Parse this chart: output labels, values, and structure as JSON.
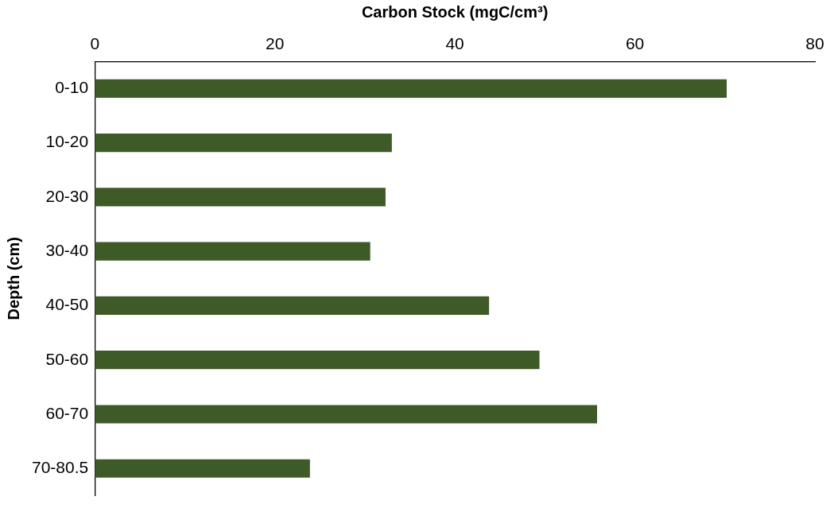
{
  "chart_data": {
    "type": "bar",
    "orientation": "horizontal",
    "xlabel": "Carbon Stock (mgC/cm³)",
    "ylabel": "Depth (cm)",
    "categories": [
      "0-10",
      "10-20",
      "20-30",
      "30-40",
      "40-50",
      "50-60",
      "60-70",
      "70-80.5"
    ],
    "values": [
      70.2,
      33.0,
      32.3,
      30.6,
      43.8,
      49.4,
      55.8,
      23.9
    ],
    "color": "#3d5a27",
    "xlim": [
      0,
      80
    ],
    "xticks": [
      0,
      20,
      40,
      60,
      80
    ],
    "grid": false,
    "legend": false
  }
}
